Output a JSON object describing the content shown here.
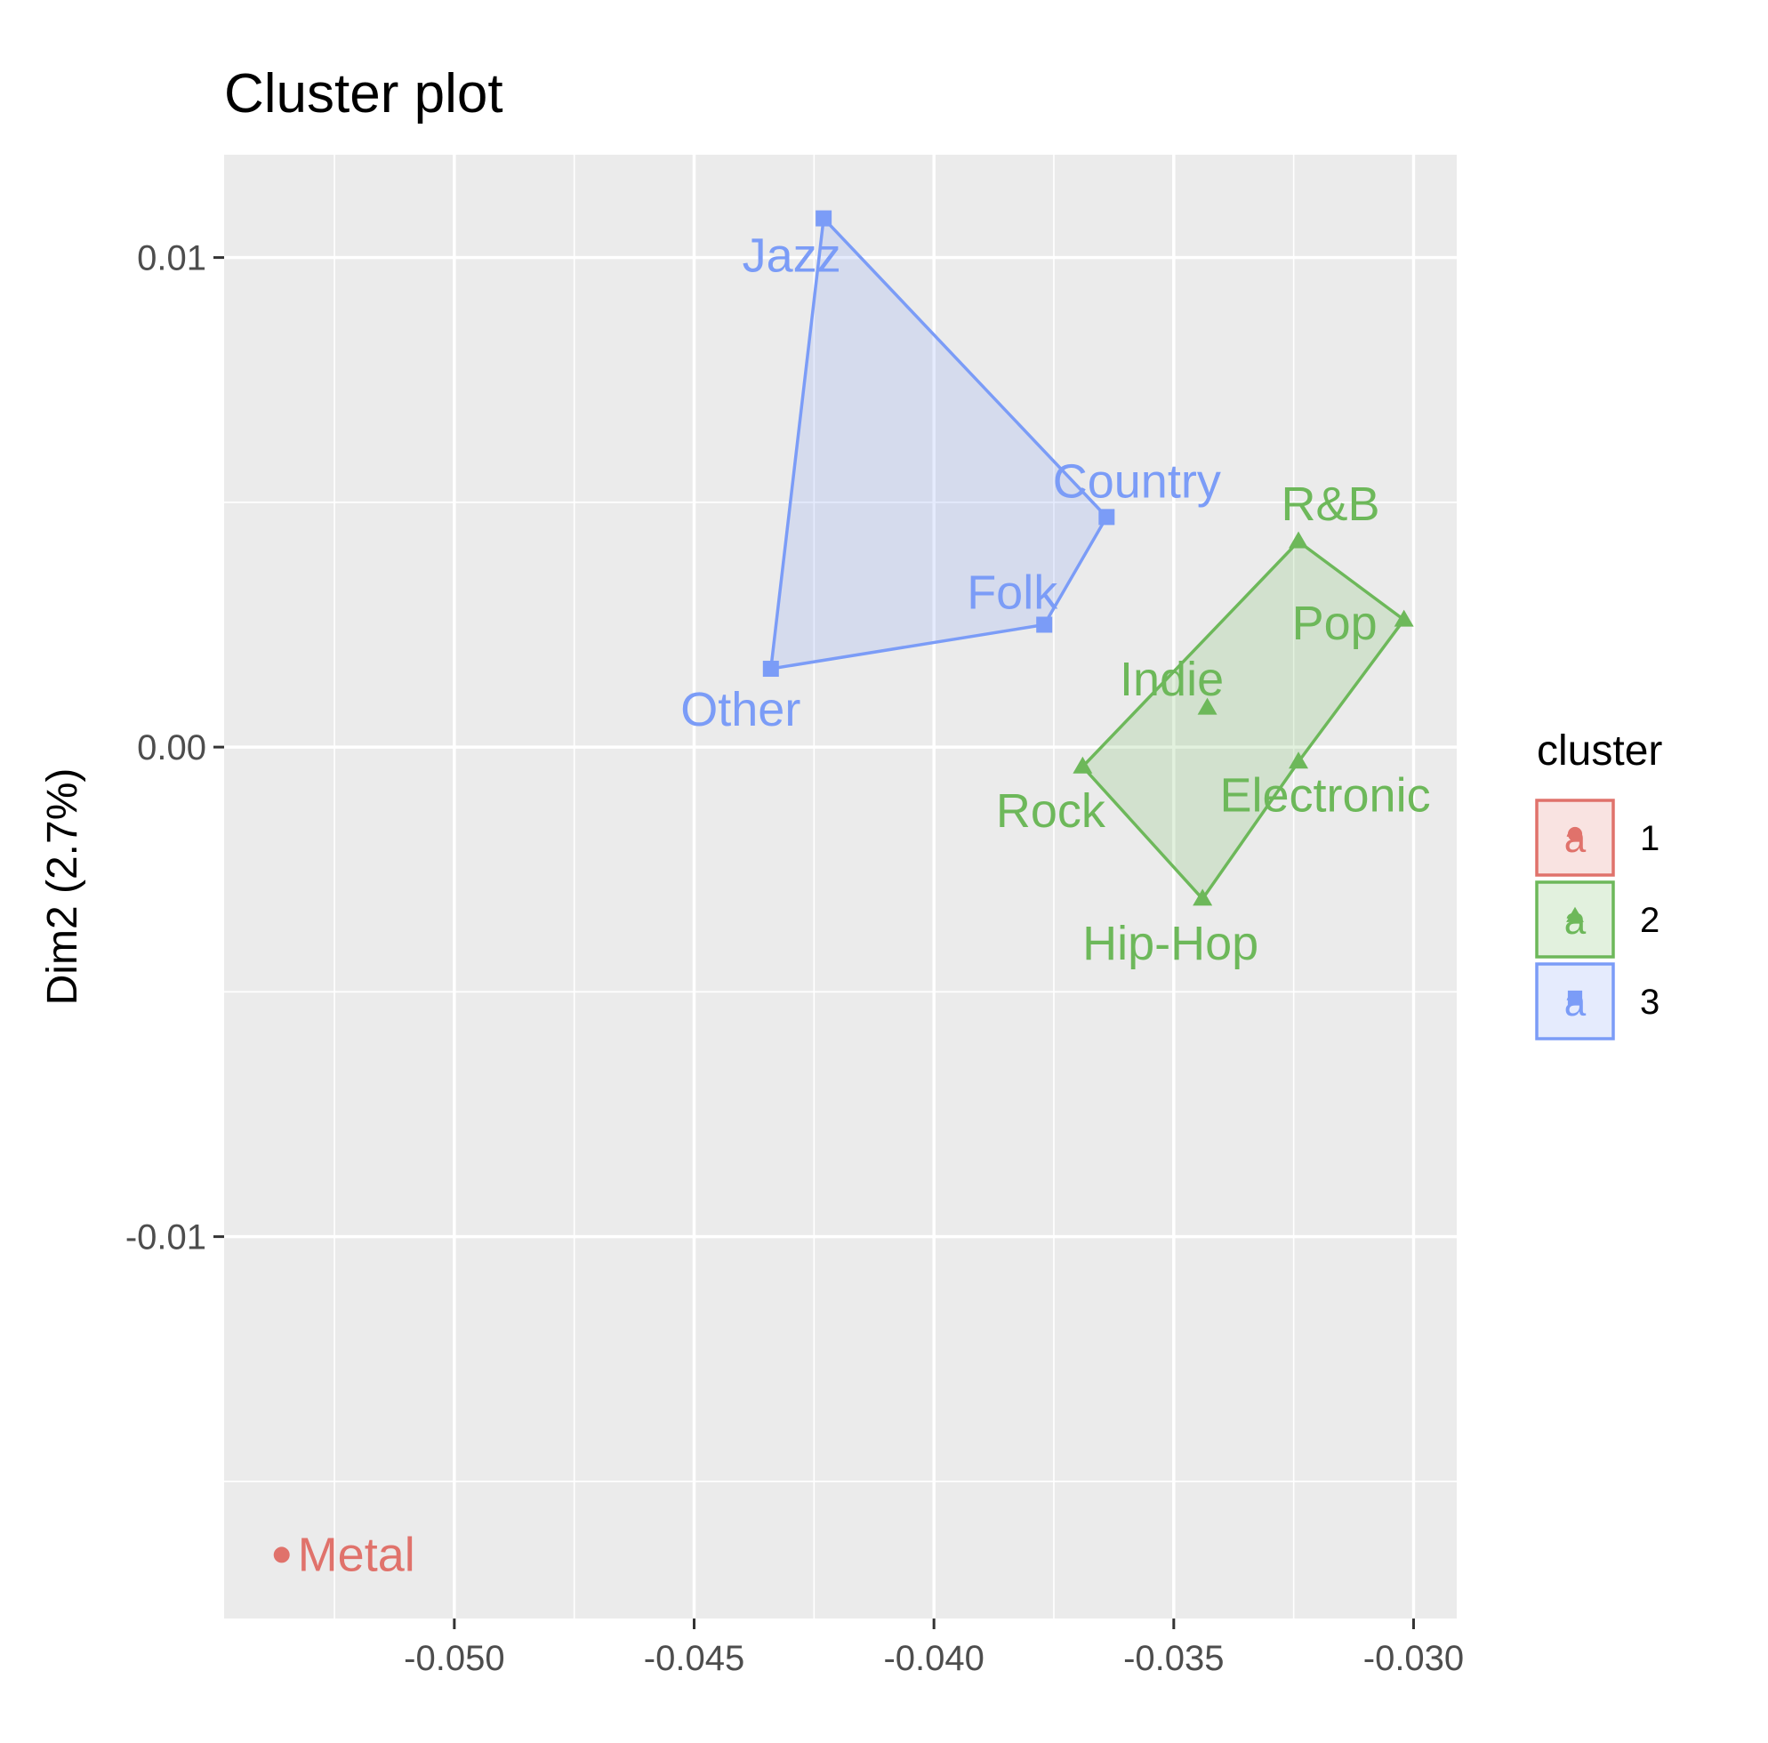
{
  "chart_data": {
    "type": "scatter",
    "title": "Cluster plot",
    "xlabel": "",
    "ylabel": "Dim2 (2.7%)",
    "xlim": [
      -0.0548,
      -0.0291
    ],
    "ylim": [
      -0.0178,
      0.0121
    ],
    "x_ticks": [
      -0.05,
      -0.045,
      -0.04,
      -0.035,
      -0.03
    ],
    "x_tick_labels": [
      "-0.050",
      "-0.045",
      "-0.040",
      "-0.035",
      "-0.030"
    ],
    "y_ticks": [
      0.01,
      0.0,
      -0.01
    ],
    "y_tick_labels": [
      "0.01",
      "0.00",
      "-0.01"
    ],
    "grid": true,
    "legend": {
      "title": "cluster",
      "position": "right",
      "entries": [
        {
          "label": "1",
          "color": "#E0726B",
          "glyph": "a"
        },
        {
          "label": "2",
          "color": "#6DB85A",
          "glyph": "a"
        },
        {
          "label": "3",
          "color": "#7B9CF7",
          "glyph": "a"
        }
      ]
    },
    "series": [
      {
        "cluster": "1",
        "color": "#E0726B",
        "marker": "circle",
        "points": [
          {
            "label": "Metal",
            "x": -0.0536,
            "y": -0.0165
          }
        ],
        "hull": []
      },
      {
        "cluster": "2",
        "color": "#6DB85A",
        "marker": "triangle",
        "points": [
          {
            "label": "R&B",
            "x": -0.0324,
            "y": 0.0042
          },
          {
            "label": "Pop",
            "x": -0.0302,
            "y": 0.0026
          },
          {
            "label": "Indie",
            "x": -0.0343,
            "y": 0.0008
          },
          {
            "label": "Electronic",
            "x": -0.0324,
            "y": -0.0003
          },
          {
            "label": "Rock",
            "x": -0.0369,
            "y": -0.0004
          },
          {
            "label": "Hip-Hop",
            "x": -0.0344,
            "y": -0.0031
          }
        ],
        "hull": [
          "R&B",
          "Pop",
          "Electronic",
          "Hip-Hop",
          "Rock"
        ]
      },
      {
        "cluster": "3",
        "color": "#7B9CF7",
        "marker": "square",
        "points": [
          {
            "label": "Jazz",
            "x": -0.0423,
            "y": 0.0108
          },
          {
            "label": "Country",
            "x": -0.0364,
            "y": 0.0047
          },
          {
            "label": "Folk",
            "x": -0.0377,
            "y": 0.0025
          },
          {
            "label": "Other",
            "x": -0.0434,
            "y": 0.0016
          }
        ],
        "hull": [
          "Jazz",
          "Country",
          "Folk",
          "Other"
        ]
      }
    ]
  }
}
